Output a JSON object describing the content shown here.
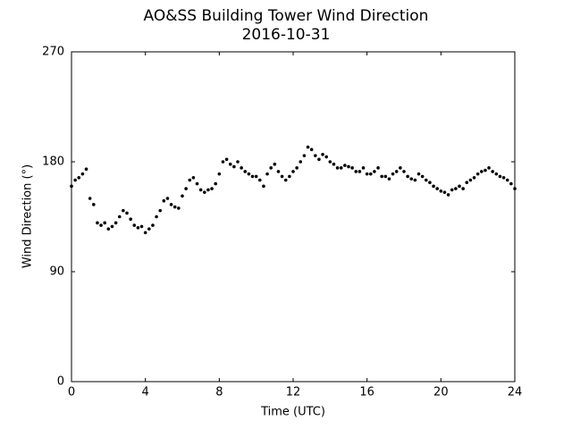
{
  "chart_data": {
    "type": "scatter",
    "title": "AO&SS Building Tower Wind Direction",
    "subtitle": "2016-10-31",
    "xlabel": "Time (UTC)",
    "ylabel": "Wind Direction (°)",
    "color": "#000000",
    "xlim": [
      0,
      24
    ],
    "xticks": [
      0,
      4,
      8,
      12,
      16,
      20,
      24
    ],
    "ylim": [
      0,
      270
    ],
    "yticks": [
      0,
      90,
      180,
      270
    ],
    "grid": false,
    "x": [
      0,
      0.2,
      0.4,
      0.6,
      0.8,
      1.0,
      1.2,
      1.4,
      1.6,
      1.8,
      2.0,
      2.2,
      2.4,
      2.6,
      2.8,
      3.0,
      3.2,
      3.4,
      3.6,
      3.8,
      4.0,
      4.2,
      4.4,
      4.6,
      4.8,
      5.0,
      5.2,
      5.4,
      5.6,
      5.8,
      6.0,
      6.2,
      6.4,
      6.6,
      6.8,
      7.0,
      7.2,
      7.4,
      7.6,
      7.8,
      8.0,
      8.2,
      8.4,
      8.6,
      8.8,
      9.0,
      9.2,
      9.4,
      9.6,
      9.8,
      10.0,
      10.2,
      10.4,
      10.6,
      10.8,
      11.0,
      11.2,
      11.4,
      11.6,
      11.8,
      12.0,
      12.2,
      12.4,
      12.6,
      12.8,
      13.0,
      13.2,
      13.4,
      13.6,
      13.8,
      14.0,
      14.2,
      14.4,
      14.6,
      14.8,
      15.0,
      15.2,
      15.4,
      15.6,
      15.8,
      16.0,
      16.2,
      16.4,
      16.6,
      16.8,
      17.0,
      17.2,
      17.4,
      17.6,
      17.8,
      18.0,
      18.2,
      18.4,
      18.6,
      18.8,
      19.0,
      19.2,
      19.4,
      19.6,
      19.8,
      20.0,
      20.2,
      20.4,
      20.6,
      20.8,
      21.0,
      21.2,
      21.4,
      21.6,
      21.8,
      22.0,
      22.2,
      22.4,
      22.6,
      22.8,
      23.0,
      23.2,
      23.4,
      23.6,
      23.8,
      24.0
    ],
    "values": [
      160,
      165,
      167,
      170,
      174,
      150,
      145,
      130,
      128,
      130,
      125,
      127,
      130,
      135,
      140,
      138,
      133,
      128,
      126,
      127,
      122,
      125,
      128,
      135,
      140,
      148,
      150,
      145,
      143,
      142,
      152,
      158,
      165,
      167,
      162,
      157,
      155,
      157,
      158,
      162,
      170,
      180,
      182,
      178,
      176,
      180,
      175,
      172,
      170,
      168,
      168,
      165,
      160,
      170,
      175,
      178,
      172,
      168,
      165,
      168,
      172,
      175,
      180,
      185,
      192,
      190,
      185,
      182,
      186,
      184,
      180,
      178,
      175,
      175,
      177,
      176,
      175,
      172,
      172,
      175,
      170,
      170,
      172,
      175,
      168,
      168,
      166,
      170,
      172,
      175,
      172,
      168,
      166,
      165,
      170,
      168,
      165,
      163,
      160,
      158,
      156,
      155,
      153,
      157,
      158,
      160,
      158,
      163,
      165,
      167,
      170,
      172,
      173,
      175,
      172,
      170,
      168,
      167,
      165,
      162,
      158
    ]
  }
}
